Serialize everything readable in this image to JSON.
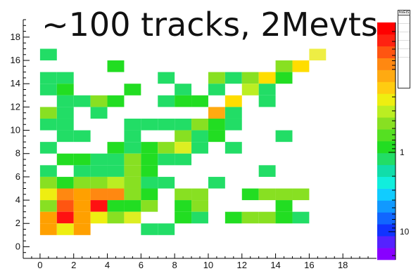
{
  "chart_data": {
    "type": "heatmap",
    "title": "~100 tracks, 2Mevts",
    "xlabel": "",
    "ylabel": "",
    "xlim": [
      -1,
      20
    ],
    "ylim": [
      -1,
      19.5
    ],
    "x_ticks": [
      "0",
      "2",
      "4",
      "6",
      "8",
      "10",
      "12",
      "14",
      "16",
      "18"
    ],
    "y_ticks": [
      "0",
      "2",
      "4",
      "6",
      "8",
      "10",
      "12",
      "14",
      "16",
      "18"
    ],
    "z_tick_labels": [
      "1",
      "10"
    ],
    "z_scale": "log",
    "color_palette": [
      "#8800ff",
      "#5522ff",
      "#1133ff",
      "#1166ff",
      "#1199ff",
      "#11ccff",
      "#11eedd",
      "#11ddaa",
      "#22dd66",
      "#22dd22",
      "#55e022",
      "#88e022",
      "#bbee22",
      "#eeee11",
      "#ffcc11",
      "#ffaa11",
      "#ff8811",
      "#ff5511",
      "#ff2211",
      "#ff0000"
    ],
    "stats_box_header": "htxEtS",
    "cells": [
      [
        0,
        16,
        "#22dd66"
      ],
      [
        16,
        16,
        "#eeee44"
      ],
      [
        4,
        15,
        "#22dd22"
      ],
      [
        14,
        15,
        "#88e022"
      ],
      [
        15,
        15,
        "#ffdd00"
      ],
      [
        0,
        14,
        "#22dd66"
      ],
      [
        1,
        14,
        "#22dd66"
      ],
      [
        7,
        14,
        "#22dd66"
      ],
      [
        10,
        14,
        "#88e022"
      ],
      [
        11,
        14,
        "#22dd66"
      ],
      [
        12,
        14,
        "#88e022"
      ],
      [
        13,
        14,
        "#ffdd00"
      ],
      [
        14,
        14,
        "#22dd22"
      ],
      [
        0,
        13,
        "#22dd66"
      ],
      [
        1,
        13,
        "#22dd22"
      ],
      [
        5,
        13,
        "#22dd22"
      ],
      [
        8,
        13,
        "#22dd66"
      ],
      [
        10,
        13,
        "#22dd66"
      ],
      [
        12,
        13,
        "#bbee22"
      ],
      [
        13,
        13,
        "#22dd66"
      ],
      [
        1,
        12,
        "#22dd66"
      ],
      [
        2,
        12,
        "#22dd66"
      ],
      [
        3,
        12,
        "#88e022"
      ],
      [
        4,
        12,
        "#22dd22"
      ],
      [
        7,
        12,
        "#22dd66"
      ],
      [
        8,
        12,
        "#22dd22"
      ],
      [
        9,
        12,
        "#22dd22"
      ],
      [
        11,
        12,
        "#ffdd00"
      ],
      [
        13,
        12,
        "#22dd66"
      ],
      [
        0,
        11,
        "#88e022"
      ],
      [
        1,
        11,
        "#22dd66"
      ],
      [
        3,
        11,
        "#22dd66"
      ],
      [
        10,
        11,
        "#ffaa11"
      ],
      [
        11,
        11,
        "#22dd66"
      ],
      [
        0,
        10,
        "#22dd66"
      ],
      [
        1,
        10,
        "#22dd66"
      ],
      [
        5,
        10,
        "#22dd66"
      ],
      [
        6,
        10,
        "#22dd66"
      ],
      [
        7,
        10,
        "#22dd66"
      ],
      [
        8,
        10,
        "#22dd66"
      ],
      [
        9,
        10,
        "#88e022"
      ],
      [
        10,
        10,
        "#22dd22"
      ],
      [
        11,
        10,
        "#22dd66"
      ],
      [
        1,
        9,
        "#22dd66"
      ],
      [
        2,
        9,
        "#22dd66"
      ],
      [
        5,
        9,
        "#22dd66"
      ],
      [
        8,
        9,
        "#88e022"
      ],
      [
        9,
        9,
        "#22dd66"
      ],
      [
        10,
        9,
        "#22dd22"
      ],
      [
        14,
        9,
        "#22dd66"
      ],
      [
        0,
        8,
        "#22dd66"
      ],
      [
        4,
        8,
        "#22dd22"
      ],
      [
        5,
        8,
        "#22dd66"
      ],
      [
        6,
        8,
        "#22dd22"
      ],
      [
        7,
        8,
        "#88e022"
      ],
      [
        8,
        8,
        "#ddee22"
      ],
      [
        9,
        8,
        "#22dd66"
      ],
      [
        11,
        8,
        "#22dd66"
      ],
      [
        1,
        7,
        "#22dd22"
      ],
      [
        2,
        7,
        "#22dd22"
      ],
      [
        3,
        7,
        "#22dd66"
      ],
      [
        4,
        7,
        "#22dd66"
      ],
      [
        5,
        7,
        "#88e022"
      ],
      [
        6,
        7,
        "#22dd22"
      ],
      [
        7,
        7,
        "#22dd66"
      ],
      [
        8,
        7,
        "#22dd66"
      ],
      [
        0,
        6,
        "#22dd66"
      ],
      [
        2,
        6,
        "#22dd66"
      ],
      [
        3,
        6,
        "#22dd66"
      ],
      [
        4,
        6,
        "#22dd66"
      ],
      [
        5,
        6,
        "#88e022"
      ],
      [
        6,
        6,
        "#22dd22"
      ],
      [
        13,
        6,
        "#22dd66"
      ],
      [
        0,
        5,
        "#88e022"
      ],
      [
        1,
        5,
        "#22dd22"
      ],
      [
        2,
        5,
        "#88e022"
      ],
      [
        3,
        5,
        "#88e022"
      ],
      [
        4,
        5,
        "#bbee22"
      ],
      [
        5,
        5,
        "#88e022"
      ],
      [
        6,
        5,
        "#22dd66"
      ],
      [
        7,
        5,
        "#22dd66"
      ],
      [
        10,
        5,
        "#22dd66"
      ],
      [
        0,
        4,
        "#eeee11"
      ],
      [
        1,
        4,
        "#ff8811"
      ],
      [
        2,
        4,
        "#ffa000"
      ],
      [
        3,
        4,
        "#ff8811"
      ],
      [
        4,
        4,
        "#ff8811"
      ],
      [
        5,
        4,
        "#88e022"
      ],
      [
        6,
        4,
        "#22dd22"
      ],
      [
        8,
        4,
        "#88e022"
      ],
      [
        9,
        4,
        "#88e022"
      ],
      [
        12,
        4,
        "#22dd22"
      ],
      [
        13,
        4,
        "#88e022"
      ],
      [
        14,
        4,
        "#88e022"
      ],
      [
        15,
        4,
        "#88e022"
      ],
      [
        0,
        3,
        "#88e022"
      ],
      [
        1,
        3,
        "#ff5511"
      ],
      [
        2,
        3,
        "#ffa000"
      ],
      [
        3,
        3,
        "#ff1111"
      ],
      [
        4,
        3,
        "#22dd22"
      ],
      [
        5,
        3,
        "#22dd22"
      ],
      [
        6,
        3,
        "#88e022"
      ],
      [
        8,
        3,
        "#22dd22"
      ],
      [
        9,
        3,
        "#88e022"
      ],
      [
        14,
        3,
        "#22dd22"
      ],
      [
        0,
        2,
        "#ffa000"
      ],
      [
        1,
        2,
        "#ff1111"
      ],
      [
        2,
        2,
        "#ffa000"
      ],
      [
        3,
        2,
        "#eeee11"
      ],
      [
        4,
        2,
        "#88e022"
      ],
      [
        5,
        2,
        "#ddee22"
      ],
      [
        8,
        2,
        "#22dd22"
      ],
      [
        9,
        2,
        "#22dd66"
      ],
      [
        11,
        2,
        "#22dd22"
      ],
      [
        12,
        2,
        "#88e022"
      ],
      [
        13,
        2,
        "#88e022"
      ],
      [
        14,
        2,
        "#22dd22"
      ],
      [
        15,
        2,
        "#22dd66"
      ],
      [
        0,
        1,
        "#ffa000"
      ],
      [
        1,
        1,
        "#eeee11"
      ],
      [
        2,
        1,
        "#ffa000"
      ],
      [
        6,
        1,
        "#22dd66"
      ],
      [
        7,
        1,
        "#22dd66"
      ]
    ]
  }
}
